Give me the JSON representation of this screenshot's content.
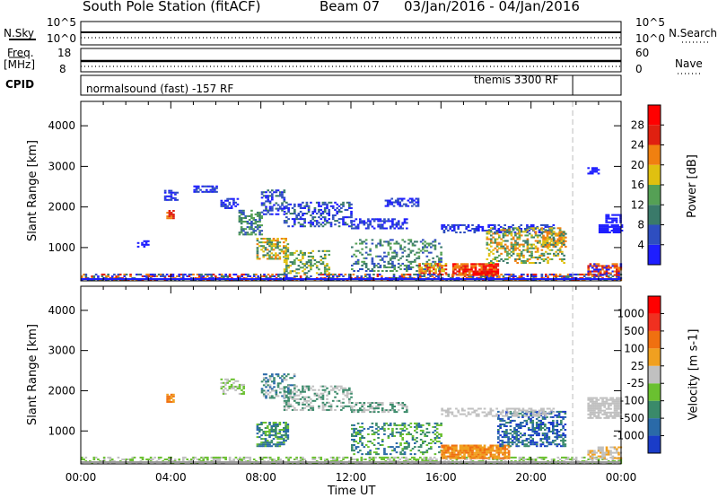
{
  "title": {
    "station": "South Pole Station (fitACF)",
    "beam": "Beam 07",
    "dates": "03/Jan/2016 - 04/Jan/2016"
  },
  "top_panels": {
    "nsky_label": "N.Sky",
    "nsky_ticks": [
      "10^5",
      "10^0"
    ],
    "nsearch_label": "N.Search",
    "nsearch_ticks": [
      "10^5",
      "10^0"
    ],
    "freq_label_1": "Freq.",
    "freq_label_2": "[MHz]",
    "freq_ticks": [
      "18",
      "8"
    ],
    "nave_label": "Nave",
    "nave_ticks": [
      "60",
      "0"
    ],
    "cpid_label": "CPID",
    "cpid_mode_1": "normalsound (fast) -157 RF",
    "cpid_mode_2": "themis 3300 RF"
  },
  "chart_data": [
    {
      "type": "heatmap",
      "name": "power",
      "ylabel": "Slant Range [km]",
      "xlabel": "",
      "yticks": [
        "1000",
        "2000",
        "3000",
        "4000"
      ],
      "ylim": [
        180,
        4600
      ],
      "xlim_hours": [
        0,
        24
      ],
      "colorbar": {
        "label": "Power [dB]",
        "ticks": [
          "4",
          "8",
          "12",
          "16",
          "20",
          "24",
          "28"
        ],
        "colors": [
          "#1e1eff",
          "#2e4ec0",
          "#3a7a6a",
          "#55a055",
          "#e0c010",
          "#f08010",
          "#e02010",
          "#ff0000"
        ]
      },
      "regions": [
        {
          "t0": 0.0,
          "t1": 24.0,
          "r0": 180,
          "r1": 320,
          "c": [
            0,
            1,
            2,
            5,
            6
          ],
          "d": 0.55
        },
        {
          "t0": 2.5,
          "t1": 3.0,
          "r0": 1000,
          "r1": 1150,
          "c": [
            0
          ],
          "d": 0.6
        },
        {
          "t0": 3.8,
          "t1": 4.1,
          "r0": 1700,
          "r1": 1900,
          "c": [
            6,
            5
          ],
          "d": 0.8
        },
        {
          "t0": 3.7,
          "t1": 4.3,
          "r0": 2150,
          "r1": 2400,
          "c": [
            0,
            1
          ],
          "d": 0.5
        },
        {
          "t0": 5.0,
          "t1": 6.0,
          "r0": 2350,
          "r1": 2500,
          "c": [
            0,
            1
          ],
          "d": 0.6
        },
        {
          "t0": 6.2,
          "t1": 7.0,
          "r0": 1950,
          "r1": 2200,
          "c": [
            0,
            1
          ],
          "d": 0.6
        },
        {
          "t0": 7.0,
          "t1": 8.0,
          "r0": 1300,
          "r1": 1900,
          "c": [
            2,
            3,
            1
          ],
          "d": 0.55
        },
        {
          "t0": 7.8,
          "t1": 9.2,
          "r0": 700,
          "r1": 1200,
          "c": [
            2,
            5,
            4,
            3
          ],
          "d": 0.6
        },
        {
          "t0": 8.0,
          "t1": 9.0,
          "r0": 1800,
          "r1": 2400,
          "c": [
            1,
            2,
            0
          ],
          "d": 0.45
        },
        {
          "t0": 9.0,
          "t1": 12.0,
          "r0": 1500,
          "r1": 2100,
          "c": [
            1,
            0,
            2
          ],
          "d": 0.45
        },
        {
          "t0": 9.0,
          "t1": 11.0,
          "r0": 350,
          "r1": 900,
          "c": [
            2,
            3,
            4
          ],
          "d": 0.35
        },
        {
          "t0": 12.0,
          "t1": 14.5,
          "r0": 1450,
          "r1": 1700,
          "c": [
            0,
            1
          ],
          "d": 0.55
        },
        {
          "t0": 13.5,
          "t1": 15.0,
          "r0": 2000,
          "r1": 2200,
          "c": [
            0,
            1
          ],
          "d": 0.5
        },
        {
          "t0": 12.0,
          "t1": 16.0,
          "r0": 400,
          "r1": 1200,
          "c": [
            2,
            3,
            1
          ],
          "d": 0.3
        },
        {
          "t0": 15.0,
          "t1": 16.2,
          "r0": 350,
          "r1": 600,
          "c": [
            5,
            6,
            4
          ],
          "d": 0.6
        },
        {
          "t0": 16.5,
          "t1": 18.5,
          "r0": 300,
          "r1": 600,
          "c": [
            6,
            5,
            7
          ],
          "d": 0.85
        },
        {
          "t0": 16.0,
          "t1": 21.0,
          "r0": 1350,
          "r1": 1550,
          "c": [
            0,
            1
          ],
          "d": 0.5
        },
        {
          "t0": 18.0,
          "t1": 21.5,
          "r0": 600,
          "r1": 1500,
          "c": [
            2,
            3,
            4,
            5
          ],
          "d": 0.45
        },
        {
          "t0": 20.5,
          "t1": 21.5,
          "r0": 1000,
          "r1": 1400,
          "c": [
            4,
            5,
            2
          ],
          "d": 0.7
        },
        {
          "t0": 23.0,
          "t1": 24.0,
          "r0": 1350,
          "r1": 1550,
          "c": [
            0
          ],
          "d": 0.9
        },
        {
          "t0": 23.3,
          "t1": 24.0,
          "r0": 1600,
          "r1": 1800,
          "c": [
            0
          ],
          "d": 0.8
        },
        {
          "t0": 22.5,
          "t1": 24.0,
          "r0": 300,
          "r1": 600,
          "c": [
            0,
            5,
            6
          ],
          "d": 0.6
        },
        {
          "t0": 22.5,
          "t1": 23.0,
          "r0": 2800,
          "r1": 2950,
          "c": [
            0
          ],
          "d": 0.7
        }
      ]
    },
    {
      "type": "heatmap",
      "name": "velocity",
      "ylabel": "Slant Range [km]",
      "xlabel": "Time UT",
      "yticks": [
        "1000",
        "2000",
        "3000",
        "4000"
      ],
      "xticks": [
        "00:00",
        "04:00",
        "08:00",
        "12:00",
        "16:00",
        "20:00",
        "00:00"
      ],
      "ylim": [
        180,
        4600
      ],
      "xlim_hours": [
        0,
        24
      ],
      "colorbar": {
        "label": "Velocity [m s-1]",
        "ticks": [
          "1000",
          "500",
          "100",
          "25",
          "-25",
          "-100",
          "-500",
          "-1000"
        ],
        "colors": [
          "#1a3cc8",
          "#2a6aa8",
          "#3a8a6a",
          "#6ac030",
          "#c0c0c0",
          "#f0a020",
          "#f07010",
          "#f03020",
          "#ff0000"
        ]
      },
      "regions": [
        {
          "t0": 0.0,
          "t1": 24.0,
          "r0": 180,
          "r1": 320,
          "c": [
            4,
            3
          ],
          "d": 0.5
        },
        {
          "t0": 3.8,
          "t1": 4.1,
          "r0": 1700,
          "r1": 1900,
          "c": [
            6,
            5
          ],
          "d": 0.8
        },
        {
          "t0": 6.2,
          "t1": 7.2,
          "r0": 1900,
          "r1": 2300,
          "c": [
            4,
            3
          ],
          "d": 0.5
        },
        {
          "t0": 7.8,
          "t1": 9.2,
          "r0": 600,
          "r1": 1200,
          "c": [
            2,
            3,
            1
          ],
          "d": 0.6
        },
        {
          "t0": 8.0,
          "t1": 9.5,
          "r0": 1800,
          "r1": 2400,
          "c": [
            2,
            1,
            4
          ],
          "d": 0.45
        },
        {
          "t0": 9.0,
          "t1": 12.0,
          "r0": 1500,
          "r1": 2100,
          "c": [
            4,
            2
          ],
          "d": 0.4
        },
        {
          "t0": 12.0,
          "t1": 16.0,
          "r0": 400,
          "r1": 1200,
          "c": [
            2,
            3,
            1
          ],
          "d": 0.3
        },
        {
          "t0": 12.0,
          "t1": 14.5,
          "r0": 1450,
          "r1": 1700,
          "c": [
            4,
            2
          ],
          "d": 0.5
        },
        {
          "t0": 16.0,
          "t1": 19.0,
          "r0": 300,
          "r1": 650,
          "c": [
            6,
            5
          ],
          "d": 0.85
        },
        {
          "t0": 18.5,
          "t1": 21.5,
          "r0": 600,
          "r1": 1500,
          "c": [
            0,
            1,
            2
          ],
          "d": 0.5
        },
        {
          "t0": 16.0,
          "t1": 21.0,
          "r0": 1350,
          "r1": 1550,
          "c": [
            4
          ],
          "d": 0.5
        },
        {
          "t0": 22.5,
          "t1": 24.0,
          "r0": 1300,
          "r1": 1800,
          "c": [
            4
          ],
          "d": 0.8
        },
        {
          "t0": 22.5,
          "t1": 24.0,
          "r0": 300,
          "r1": 600,
          "c": [
            5,
            4
          ],
          "d": 0.6
        }
      ]
    }
  ]
}
